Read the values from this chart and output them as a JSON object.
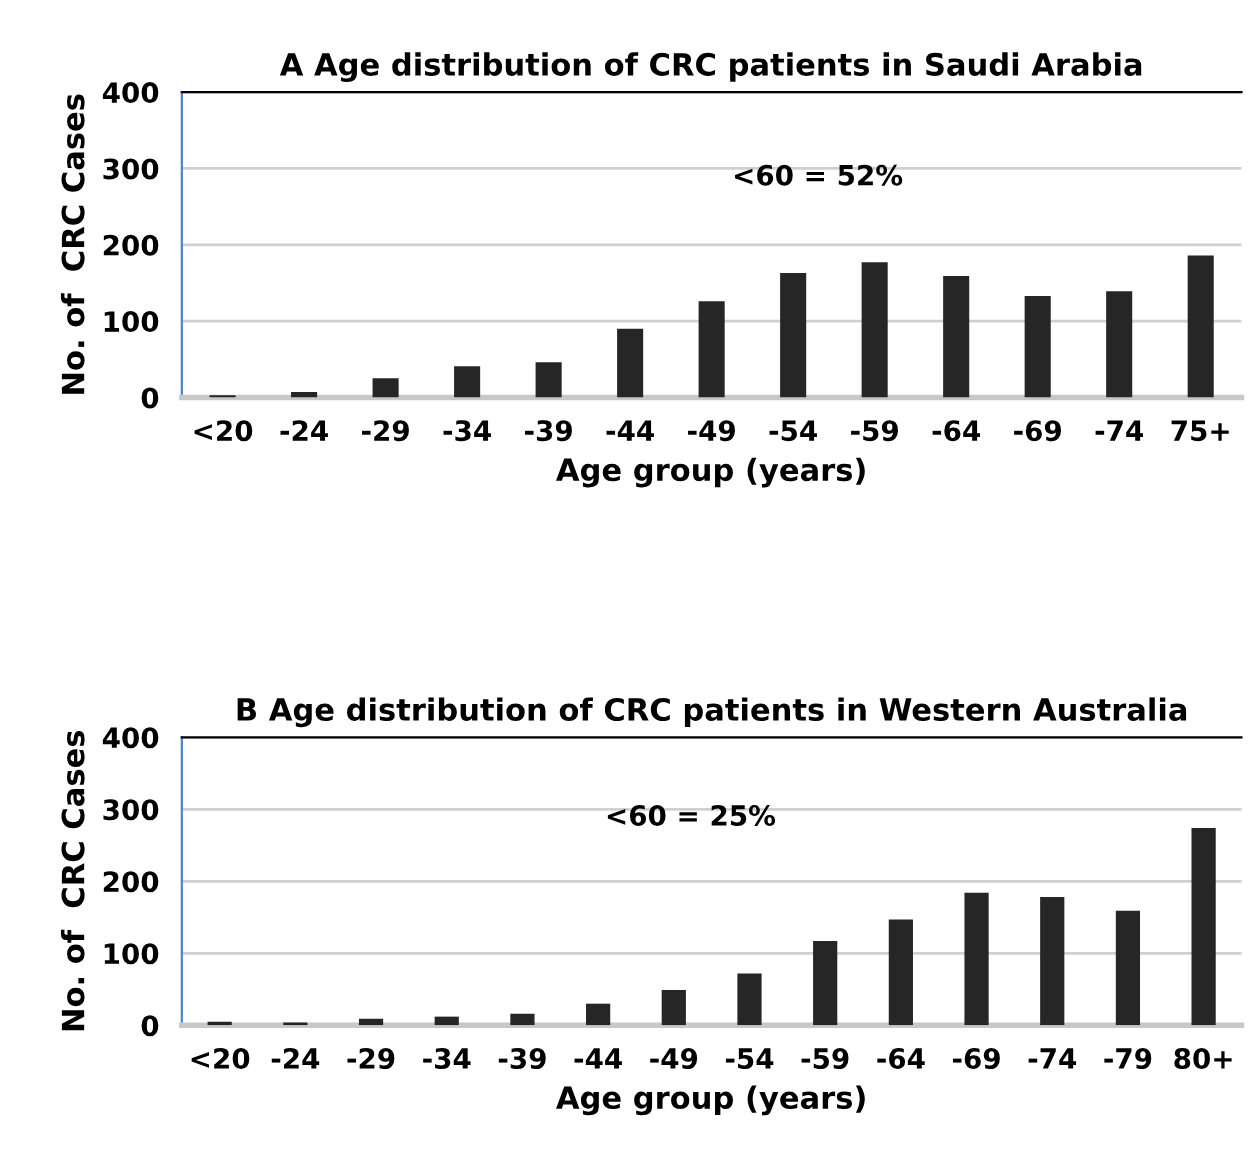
{
  "chart_data": [
    {
      "type": "bar",
      "title": "A Age distribution of CRC patients in Saudi Arabia",
      "xlabel": "Age group (years)",
      "ylabel": "No. of  CRC Cases",
      "categories": [
        "<20",
        "-24",
        "-29",
        "-34",
        "-39",
        "-44",
        "-49",
        "-54",
        "-59",
        "-64",
        "-69",
        "-74",
        "75+"
      ],
      "values": [
        3,
        7,
        25,
        41,
        46,
        90,
        126,
        163,
        177,
        159,
        133,
        139,
        186
      ],
      "color": "#262626",
      "ylim": [
        0,
        400
      ],
      "yticks": [
        0,
        100,
        200,
        300,
        400
      ],
      "grid": "y",
      "annotations": [
        "<60 = 52%"
      ]
    },
    {
      "type": "bar",
      "title": "B Age distribution of CRC patients in Western Australia",
      "xlabel": "Age group (years)",
      "ylabel": "No. of  CRC Cases",
      "categories": [
        "<20",
        "-24",
        "-29",
        "-34",
        "-39",
        "-44",
        "-49",
        "-54",
        "-59",
        "-64",
        "-69",
        "-74",
        "-79",
        "80+"
      ],
      "values": [
        5,
        4,
        9,
        12,
        16,
        30,
        49,
        72,
        117,
        147,
        184,
        178,
        159,
        274
      ],
      "color": "#262626",
      "ylim": [
        0,
        400
      ],
      "yticks": [
        0,
        100,
        200,
        300,
        400
      ],
      "grid": "y",
      "annotations": [
        "<60 = 25%"
      ]
    }
  ]
}
